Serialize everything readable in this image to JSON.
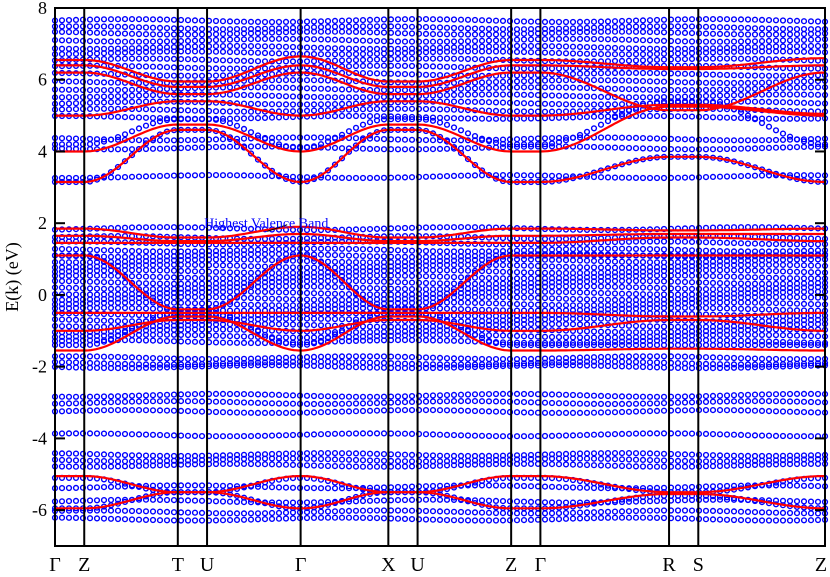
{
  "chart_data": {
    "type": "line",
    "title": "",
    "xlabel": "",
    "ylabel": "E(k)  (eV)",
    "ylim": [
      -7,
      8
    ],
    "yticks": [
      -6,
      -4,
      -2,
      0,
      2,
      4,
      6,
      8
    ],
    "ytick_labels": [
      "-6",
      "-4",
      "-2",
      "0",
      "2",
      "4",
      "6",
      "8"
    ],
    "kpath_labels": [
      "Γ",
      "Z",
      "T",
      "U",
      "Γ",
      "X",
      "U",
      "Z",
      "Γ",
      "R",
      "S",
      "Z"
    ],
    "kpath_positions": [
      0,
      0.3,
      1.26,
      1.56,
      2.52,
      3.42,
      3.72,
      4.68,
      4.98,
      6.3,
      6.6,
      7.9
    ],
    "annotation": {
      "text": "Highest Valence Band",
      "x": 2.3,
      "y": 2.05,
      "color": "#0000ff"
    },
    "series": [
      {
        "name": "",
        "style": "line",
        "color": "#ff0000",
        "description_values": "red solid bands"
      },
      {
        "name": "",
        "style": "marker",
        "color": "#0000ff",
        "description_values": "blue open circles"
      }
    ],
    "bands": [
      {
        "series": 0,
        "points": [
          [
            0,
            3.15
          ],
          [
            0.3,
            3.15
          ],
          [
            1.26,
            4.6
          ],
          [
            1.56,
            4.6
          ],
          [
            2.52,
            3.15
          ],
          [
            3.42,
            4.6
          ],
          [
            3.72,
            4.6
          ],
          [
            4.68,
            3.15
          ],
          [
            4.98,
            3.15
          ],
          [
            6.3,
            3.85
          ],
          [
            6.6,
            3.85
          ],
          [
            7.9,
            3.15
          ]
        ]
      },
      {
        "series": 0,
        "points": [
          [
            0,
            4.0
          ],
          [
            0.3,
            4.0
          ],
          [
            1.26,
            4.75
          ],
          [
            1.56,
            4.75
          ],
          [
            2.52,
            4.0
          ],
          [
            3.42,
            4.75
          ],
          [
            3.72,
            4.75
          ],
          [
            4.68,
            4.0
          ],
          [
            4.98,
            4.0
          ],
          [
            6.3,
            5.25
          ],
          [
            6.6,
            5.25
          ],
          [
            7.9,
            5.0
          ]
        ]
      },
      {
        "series": 0,
        "points": [
          [
            0,
            5.0
          ],
          [
            0.3,
            5.0
          ],
          [
            1.26,
            5.4
          ],
          [
            1.56,
            5.4
          ],
          [
            2.52,
            5.0
          ],
          [
            3.42,
            5.4
          ],
          [
            3.72,
            5.4
          ],
          [
            4.68,
            5.0
          ],
          [
            4.98,
            5.0
          ],
          [
            6.3,
            5.3
          ],
          [
            6.6,
            5.3
          ],
          [
            7.9,
            5.05
          ]
        ]
      },
      {
        "series": 0,
        "points": [
          [
            0,
            6.2
          ],
          [
            0.3,
            6.2
          ],
          [
            1.26,
            5.6
          ],
          [
            1.56,
            5.6
          ],
          [
            2.52,
            6.2
          ],
          [
            3.42,
            5.6
          ],
          [
            3.72,
            5.6
          ],
          [
            4.68,
            6.2
          ],
          [
            4.98,
            6.2
          ],
          [
            6.3,
            5.15
          ],
          [
            6.6,
            5.15
          ],
          [
            7.9,
            6.2
          ]
        ]
      },
      {
        "series": 0,
        "points": [
          [
            0,
            6.4
          ],
          [
            0.3,
            6.4
          ],
          [
            1.26,
            5.8
          ],
          [
            1.56,
            5.8
          ],
          [
            2.52,
            6.4
          ],
          [
            3.42,
            5.8
          ],
          [
            3.72,
            5.8
          ],
          [
            4.68,
            6.4
          ],
          [
            4.98,
            6.4
          ],
          [
            6.3,
            6.3
          ],
          [
            6.6,
            6.3
          ],
          [
            7.9,
            6.4
          ]
        ]
      },
      {
        "series": 0,
        "points": [
          [
            0,
            6.55
          ],
          [
            0.3,
            6.55
          ],
          [
            1.26,
            5.95
          ],
          [
            1.56,
            5.95
          ],
          [
            2.52,
            6.65
          ],
          [
            3.42,
            5.95
          ],
          [
            3.72,
            5.95
          ],
          [
            4.68,
            6.55
          ],
          [
            4.98,
            6.55
          ],
          [
            6.3,
            6.35
          ],
          [
            6.6,
            6.35
          ],
          [
            7.9,
            6.6
          ]
        ]
      },
      {
        "series": 0,
        "points": [
          [
            0,
            1.85
          ],
          [
            0.3,
            1.85
          ],
          [
            1.26,
            1.6
          ],
          [
            1.56,
            1.6
          ],
          [
            2.52,
            1.9
          ],
          [
            3.42,
            1.6
          ],
          [
            3.72,
            1.6
          ],
          [
            4.68,
            1.85
          ],
          [
            4.98,
            1.85
          ],
          [
            6.3,
            1.8
          ],
          [
            6.6,
            1.8
          ],
          [
            7.9,
            1.85
          ]
        ]
      },
      {
        "series": 0,
        "points": [
          [
            0,
            1.65
          ],
          [
            0.3,
            1.65
          ],
          [
            1.26,
            1.5
          ],
          [
            1.56,
            1.5
          ],
          [
            2.52,
            1.7
          ],
          [
            3.42,
            1.5
          ],
          [
            3.72,
            1.5
          ],
          [
            4.68,
            1.65
          ],
          [
            4.98,
            1.65
          ],
          [
            6.3,
            1.7
          ],
          [
            6.6,
            1.7
          ],
          [
            7.9,
            1.7
          ]
        ]
      },
      {
        "series": 0,
        "points": [
          [
            0,
            1.45
          ],
          [
            0.3,
            1.45
          ],
          [
            1.26,
            1.45
          ],
          [
            1.56,
            1.45
          ],
          [
            2.52,
            1.45
          ],
          [
            3.42,
            1.45
          ],
          [
            3.72,
            1.45
          ],
          [
            4.68,
            1.45
          ],
          [
            4.98,
            1.45
          ],
          [
            6.3,
            1.6
          ],
          [
            6.6,
            1.6
          ],
          [
            7.9,
            1.5
          ]
        ]
      },
      {
        "series": 0,
        "points": [
          [
            0,
            1.1
          ],
          [
            0.3,
            1.1
          ],
          [
            1.26,
            -0.4
          ],
          [
            1.56,
            -0.4
          ],
          [
            2.52,
            1.1
          ],
          [
            3.42,
            -0.4
          ],
          [
            3.72,
            -0.4
          ],
          [
            4.68,
            1.1
          ],
          [
            4.98,
            1.1
          ],
          [
            6.3,
            1.1
          ],
          [
            6.6,
            1.1
          ],
          [
            7.9,
            1.1
          ]
        ]
      },
      {
        "series": 0,
        "points": [
          [
            0,
            -1.55
          ],
          [
            0.3,
            -1.55
          ],
          [
            1.26,
            -0.6
          ],
          [
            1.56,
            -0.6
          ],
          [
            2.52,
            -1.55
          ],
          [
            3.42,
            -0.6
          ],
          [
            3.72,
            -0.6
          ],
          [
            4.68,
            -1.55
          ],
          [
            4.98,
            -1.55
          ],
          [
            6.3,
            -1.5
          ],
          [
            6.6,
            -1.5
          ],
          [
            7.9,
            -1.55
          ]
        ]
      },
      {
        "series": 0,
        "points": [
          [
            0,
            -0.5
          ],
          [
            0.3,
            -0.5
          ],
          [
            1.26,
            -0.5
          ],
          [
            1.56,
            -0.5
          ],
          [
            2.52,
            -0.5
          ],
          [
            3.42,
            -0.5
          ],
          [
            3.72,
            -0.5
          ],
          [
            4.68,
            -0.5
          ],
          [
            4.98,
            -0.5
          ],
          [
            6.3,
            -0.6
          ],
          [
            6.6,
            -0.6
          ],
          [
            7.9,
            -0.5
          ]
        ]
      },
      {
        "series": 0,
        "points": [
          [
            0,
            -1.0
          ],
          [
            0.3,
            -1.0
          ],
          [
            1.26,
            -0.7
          ],
          [
            1.56,
            -0.7
          ],
          [
            2.52,
            -1.0
          ],
          [
            3.42,
            -0.7
          ],
          [
            3.72,
            -0.7
          ],
          [
            4.68,
            -1.0
          ],
          [
            4.98,
            -1.0
          ],
          [
            6.3,
            -0.7
          ],
          [
            6.6,
            -0.7
          ],
          [
            7.9,
            -1.0
          ]
        ]
      },
      {
        "series": 0,
        "points": [
          [
            0,
            -5.05
          ],
          [
            0.3,
            -5.05
          ],
          [
            1.26,
            -5.5
          ],
          [
            1.56,
            -5.5
          ],
          [
            2.52,
            -5.05
          ],
          [
            3.42,
            -5.5
          ],
          [
            3.72,
            -5.5
          ],
          [
            4.68,
            -5.05
          ],
          [
            4.98,
            -5.05
          ],
          [
            6.3,
            -5.5
          ],
          [
            6.6,
            -5.5
          ],
          [
            7.9,
            -5.05
          ]
        ]
      },
      {
        "series": 0,
        "points": [
          [
            0,
            -5.95
          ],
          [
            0.3,
            -5.95
          ],
          [
            1.26,
            -5.5
          ],
          [
            1.56,
            -5.5
          ],
          [
            2.52,
            -5.95
          ],
          [
            3.42,
            -5.5
          ],
          [
            3.72,
            -5.5
          ],
          [
            4.68,
            -5.95
          ],
          [
            4.98,
            -5.95
          ],
          [
            6.3,
            -5.55
          ],
          [
            6.6,
            -5.55
          ],
          [
            7.9,
            -5.95
          ]
        ]
      }
    ],
    "dot_levels": [
      7.65,
      7.45,
      7.3,
      7.1,
      6.9,
      6.75,
      6.55,
      6.35,
      6.15,
      5.95,
      5.75,
      5.55,
      5.35,
      5.15,
      4.95,
      4.35,
      4.1,
      3.3,
      1.85,
      1.6,
      1.45,
      1.25,
      1.1,
      0.95,
      0.8,
      0.65,
      0.5,
      0.35,
      0.2,
      0.05,
      -0.1,
      -0.25,
      -0.4,
      -0.55,
      -0.7,
      -0.85,
      -1.0,
      -1.15,
      -1.3,
      -1.75,
      -1.9,
      -2.0,
      -2.8,
      -3.0,
      -3.25,
      -3.9,
      -4.45,
      -4.6,
      -4.75,
      -5.35,
      -5.75,
      -6.05,
      -6.25
    ],
    "dot_bands": [
      {
        "points": [
          [
            0,
            3.15
          ],
          [
            0.3,
            3.15
          ],
          [
            1.26,
            4.6
          ],
          [
            1.56,
            4.6
          ],
          [
            2.52,
            3.15
          ],
          [
            3.42,
            4.6
          ],
          [
            3.72,
            4.6
          ],
          [
            4.68,
            3.15
          ],
          [
            4.98,
            3.15
          ],
          [
            6.3,
            3.85
          ],
          [
            6.6,
            3.85
          ],
          [
            7.9,
            3.15
          ]
        ]
      },
      {
        "points": [
          [
            0,
            4.2
          ],
          [
            0.3,
            4.2
          ],
          [
            1.26,
            4.9
          ],
          [
            1.56,
            4.9
          ],
          [
            2.52,
            4.1
          ],
          [
            3.42,
            4.9
          ],
          [
            3.72,
            4.9
          ],
          [
            4.68,
            4.2
          ],
          [
            4.98,
            4.2
          ],
          [
            6.3,
            5.4
          ],
          [
            6.6,
            5.4
          ],
          [
            7.9,
            4.2
          ]
        ]
      },
      {
        "points": [
          [
            0,
            1.1
          ],
          [
            0.3,
            1.1
          ],
          [
            1.26,
            -0.4
          ],
          [
            1.56,
            -0.4
          ],
          [
            2.52,
            1.1
          ],
          [
            3.42,
            -0.4
          ],
          [
            3.72,
            -0.4
          ],
          [
            4.68,
            1.1
          ],
          [
            4.98,
            1.1
          ],
          [
            6.3,
            1.1
          ],
          [
            6.6,
            1.1
          ],
          [
            7.9,
            1.1
          ]
        ]
      },
      {
        "points": [
          [
            0,
            -1.4
          ],
          [
            0.3,
            -1.4
          ],
          [
            1.26,
            -0.5
          ],
          [
            1.56,
            -0.5
          ],
          [
            2.52,
            -1.4
          ],
          [
            3.42,
            -0.5
          ],
          [
            3.72,
            -0.5
          ],
          [
            4.68,
            -1.4
          ],
          [
            4.98,
            -1.4
          ],
          [
            6.3,
            -1.4
          ],
          [
            6.6,
            -1.4
          ],
          [
            7.9,
            -1.4
          ]
        ]
      },
      {
        "points": [
          [
            0,
            -5.1
          ],
          [
            0.3,
            -5.1
          ],
          [
            1.26,
            -5.5
          ],
          [
            1.56,
            -5.5
          ],
          [
            2.52,
            -5.1
          ],
          [
            3.42,
            -5.5
          ],
          [
            3.72,
            -5.5
          ],
          [
            4.68,
            -5.1
          ],
          [
            4.98,
            -5.1
          ],
          [
            6.3,
            -5.5
          ],
          [
            6.6,
            -5.5
          ],
          [
            7.9,
            -5.1
          ]
        ]
      },
      {
        "points": [
          [
            0,
            -5.95
          ],
          [
            0.3,
            -5.95
          ],
          [
            1.26,
            -5.5
          ],
          [
            1.56,
            -5.5
          ],
          [
            2.52,
            -5.95
          ],
          [
            3.42,
            -5.5
          ],
          [
            3.72,
            -5.5
          ],
          [
            4.68,
            -5.95
          ],
          [
            4.98,
            -5.95
          ],
          [
            6.3,
            -5.6
          ],
          [
            6.6,
            -5.6
          ],
          [
            7.9,
            -5.95
          ]
        ]
      }
    ]
  }
}
